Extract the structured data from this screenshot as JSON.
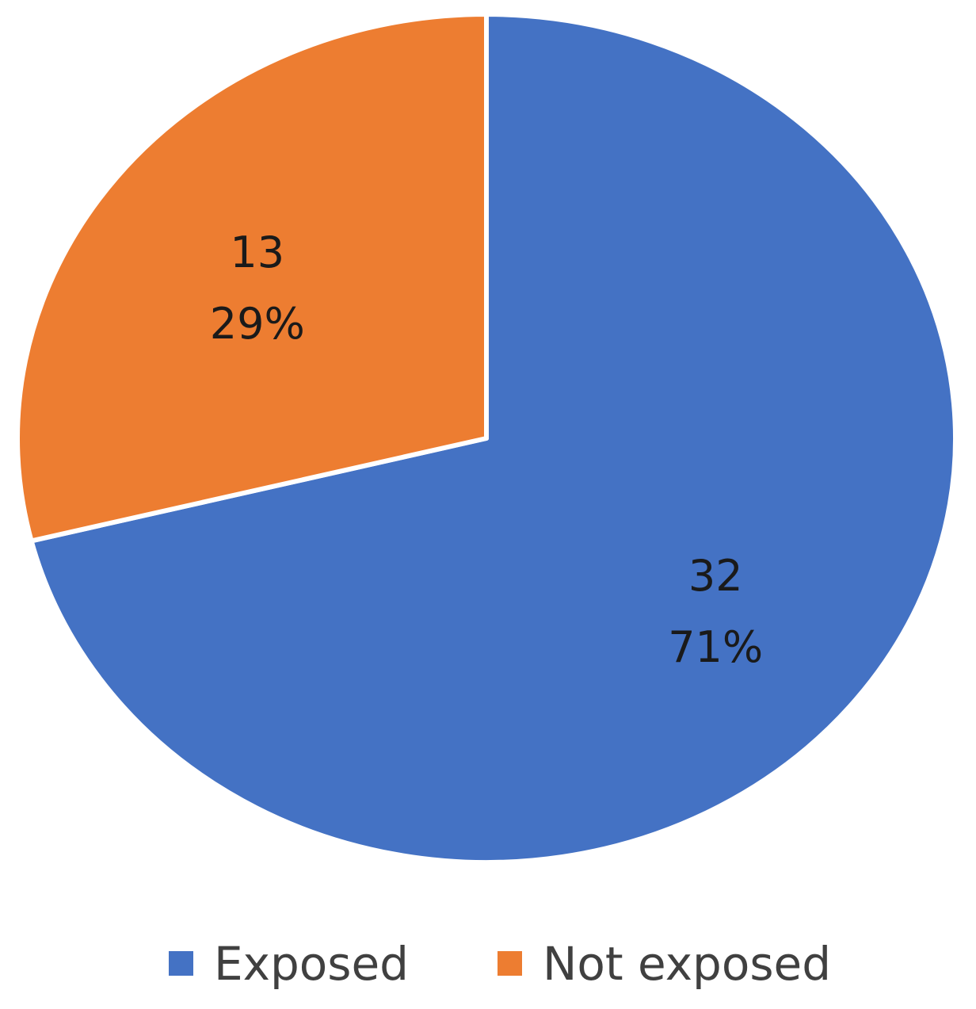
{
  "chart_data": {
    "type": "pie",
    "title": "",
    "start_angle_deg": 0,
    "direction": "clockwise",
    "legend_position": "bottom",
    "slices": [
      {
        "name": "Exposed",
        "value": 32,
        "percent_label": "71%",
        "color": "#4472C4"
      },
      {
        "name": "Not exposed",
        "value": 13,
        "percent_label": "29%",
        "color": "#ED7D31"
      }
    ]
  }
}
